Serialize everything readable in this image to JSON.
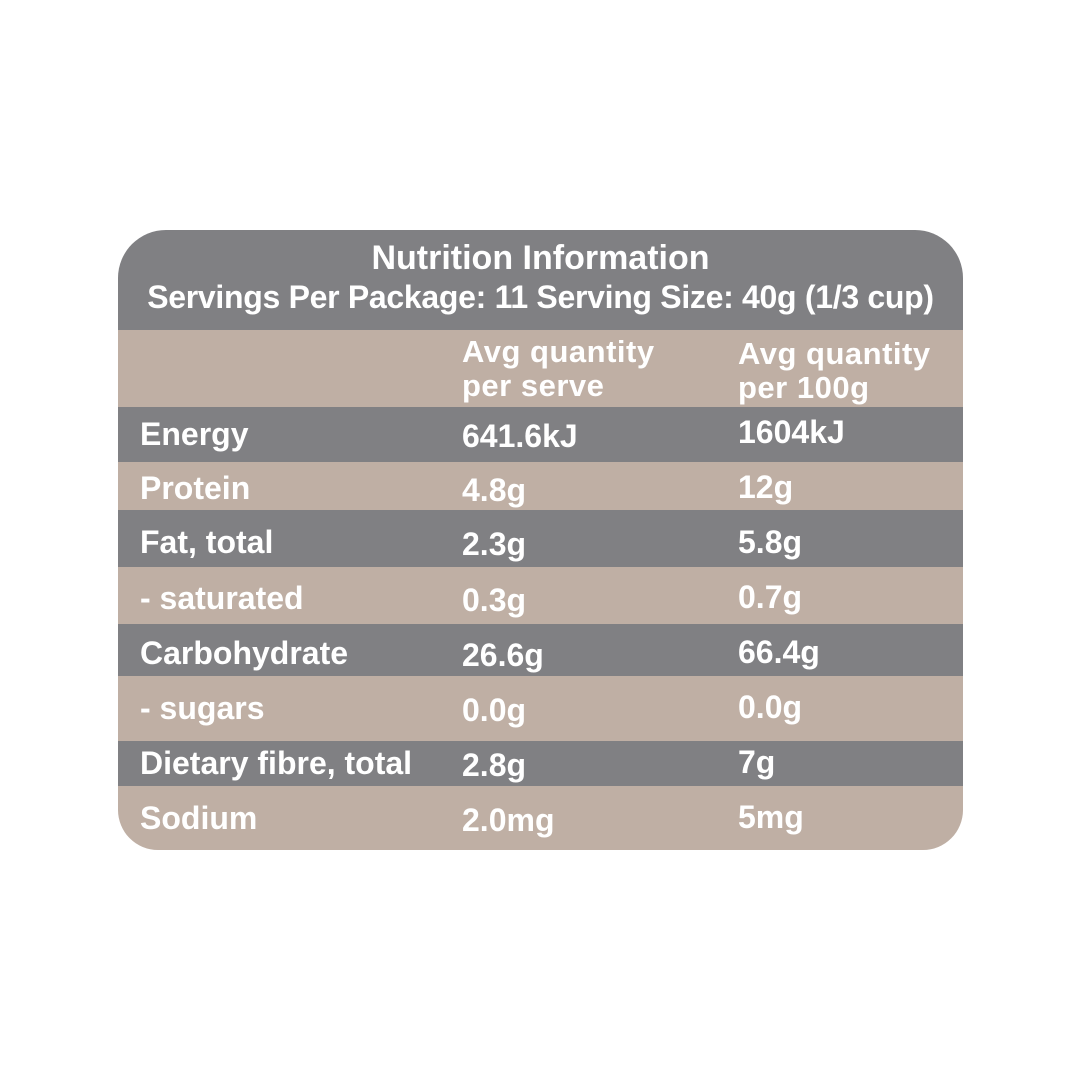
{
  "label": {
    "title": "Nutrition Information",
    "serving_info": "Servings Per Package: 11  Serving Size: 40g (1/3 cup)",
    "colors": {
      "header_grey": "#808083",
      "row_tan": "#bfafa4",
      "text": "#ffffff"
    }
  },
  "columns": {
    "nutrient": "",
    "per_serve": [
      "Avg quantity",
      "per serve"
    ],
    "per_100g": [
      "Avg quantity",
      "per 100g"
    ]
  },
  "rows": [
    {
      "nutrient": "Energy",
      "per_serve": "641.6kJ",
      "per_100g": "1604kJ"
    },
    {
      "nutrient": "Protein",
      "per_serve": "4.8g",
      "per_100g": "12g"
    },
    {
      "nutrient": "Fat, total",
      "per_serve": "2.3g",
      "per_100g": "5.8g"
    },
    {
      "nutrient": "- saturated",
      "per_serve": "0.3g",
      "per_100g": "0.7g"
    },
    {
      "nutrient": "Carbohydrate",
      "per_serve": "26.6g",
      "per_100g": "66.4g"
    },
    {
      "nutrient": "- sugars",
      "per_serve": "0.0g",
      "per_100g": "0.0g"
    },
    {
      "nutrient": "Dietary fibre, total",
      "per_serve": "2.8g",
      "per_100g": "7g"
    },
    {
      "nutrient": "Sodium",
      "per_serve": "2.0mg",
      "per_100g": "5mg"
    }
  ]
}
